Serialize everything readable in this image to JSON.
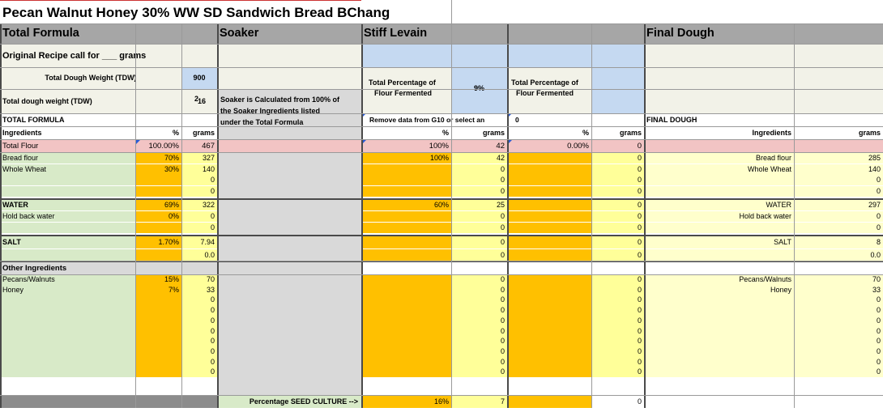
{
  "title": "Pecan Walnut Honey 30% WW SD Sandwich Bread BChang",
  "sections": {
    "total_formula": "Total Formula",
    "soaker": "Soaker",
    "stiff_levain": "Stiff Levain",
    "final_dough": "Final Dough"
  },
  "original_recipe": "Original Recipe call for ___ grams",
  "tdw_label": "Total Dough Weight (TDW)",
  "tdw_value": "900",
  "tdw2_label": "Total dough weight (TDW)",
  "tdw2_value": "16",
  "tdw2_extra": "2",
  "soaker_note": [
    "Soaker is Calculated from 100% of",
    "the Soaker Ingredients listed",
    "under the Total Formula"
  ],
  "levain_pct_label": [
    "Total Percentage of",
    "Flour Fermented"
  ],
  "levain_pct_value": "9%",
  "blank_pct_label": [
    "Total Percentage of",
    "Flour Fermented"
  ],
  "remove_note": "Remove data from G10 or select an",
  "blank_note": "0",
  "total_formula_header": "TOTAL FORMULA",
  "final_dough_header": "FINAL DOUGH",
  "col": {
    "ingredients": "Ingredients",
    "pct": "%",
    "grams": "grams"
  },
  "total_flour": {
    "label": "Total Flour",
    "pct": "100.00%",
    "grams": "467",
    "levain_pct": "100%",
    "levain_grams": "42",
    "blank_pct": "0.00%",
    "blank_grams": "0"
  },
  "flour_rows": [
    {
      "label": "Bread flour",
      "pct": "70%",
      "grams": "327",
      "lpct": "100%",
      "lg": "42",
      "bg": "0",
      "fname": "Bread flour",
      "fg": "285"
    },
    {
      "label": "Whole Wheat",
      "pct": "30%",
      "grams": "140",
      "lpct": "",
      "lg": "0",
      "bg": "0",
      "fname": "Whole Wheat",
      "fg": "140"
    },
    {
      "label": "",
      "pct": "",
      "grams": "0",
      "lpct": "",
      "lg": "0",
      "bg": "0",
      "fname": "",
      "fg": "0"
    },
    {
      "label": "",
      "pct": "",
      "grams": "0",
      "lpct": "",
      "lg": "0",
      "bg": "0",
      "fname": "",
      "fg": "0"
    }
  ],
  "water_rows": [
    {
      "label": "WATER",
      "pct": "69%",
      "grams": "322",
      "lpct": "60%",
      "lg": "25",
      "bg": "0",
      "fname": "WATER",
      "fg": "297"
    },
    {
      "label": "Hold back water",
      "pct": "0%",
      "grams": "0",
      "lpct": "",
      "lg": "0",
      "bg": "0",
      "fname": "Hold back water",
      "fg": "0"
    },
    {
      "label": "",
      "pct": "",
      "grams": "0",
      "lpct": "",
      "lg": "0",
      "bg": "0",
      "fname": "",
      "fg": "0"
    }
  ],
  "salt_rows": [
    {
      "label": "SALT",
      "pct": "1.70%",
      "grams": "7.94",
      "lpct": "",
      "lg": "0",
      "bg": "0",
      "fname": "SALT",
      "fg": "8"
    },
    {
      "label": "",
      "pct": "",
      "grams": "0.0",
      "lpct": "",
      "lg": "0",
      "bg": "0",
      "fname": "",
      "fg": "0.0"
    }
  ],
  "other_header": "Other Ingredients",
  "other_rows": [
    {
      "label": "Pecans/Walnuts",
      "pct": "15%",
      "grams": "70",
      "lg": "0",
      "bg": "0",
      "fname": "Pecans/Walnuts",
      "fg": "70"
    },
    {
      "label": "Honey",
      "pct": "7%",
      "grams": "33",
      "lg": "0",
      "bg": "0",
      "fname": "Honey",
      "fg": "33"
    },
    {
      "label": "",
      "pct": "",
      "grams": "0",
      "lg": "0",
      "bg": "0",
      "fname": "",
      "fg": "0"
    },
    {
      "label": "",
      "pct": "",
      "grams": "0",
      "lg": "0",
      "bg": "0",
      "fname": "",
      "fg": "0"
    },
    {
      "label": "",
      "pct": "",
      "grams": "0",
      "lg": "0",
      "bg": "0",
      "fname": "",
      "fg": "0"
    },
    {
      "label": "",
      "pct": "",
      "grams": "0",
      "lg": "0",
      "bg": "0",
      "fname": "",
      "fg": "0"
    },
    {
      "label": "",
      "pct": "",
      "grams": "0",
      "lg": "0",
      "bg": "0",
      "fname": "",
      "fg": "0"
    },
    {
      "label": "",
      "pct": "",
      "grams": "0",
      "lg": "0",
      "bg": "0",
      "fname": "",
      "fg": "0"
    },
    {
      "label": "",
      "pct": "",
      "grams": "0",
      "lg": "0",
      "bg": "0",
      "fname": "",
      "fg": "0"
    },
    {
      "label": "",
      "pct": "",
      "grams": "0",
      "lg": "0",
      "bg": "0",
      "fname": "",
      "fg": "0"
    }
  ],
  "seed": {
    "label": "Percentage SEED CULTURE  -->",
    "pct": "16%",
    "grams": "7",
    "blank_grams": "0",
    "extra_grams": "0"
  },
  "colors": {
    "green": "#d8eac8",
    "orange": "#ffc000",
    "yellow": "#ffff99",
    "light_yellow": "#ffffcc",
    "pink": "#f2c4c4",
    "blue": "#c5d9f1",
    "header_gray": "#a6a6a6",
    "band_gray": "#d9d9d9",
    "panel_gray": "#d9d9d9",
    "cream": "#f2f2e8"
  }
}
